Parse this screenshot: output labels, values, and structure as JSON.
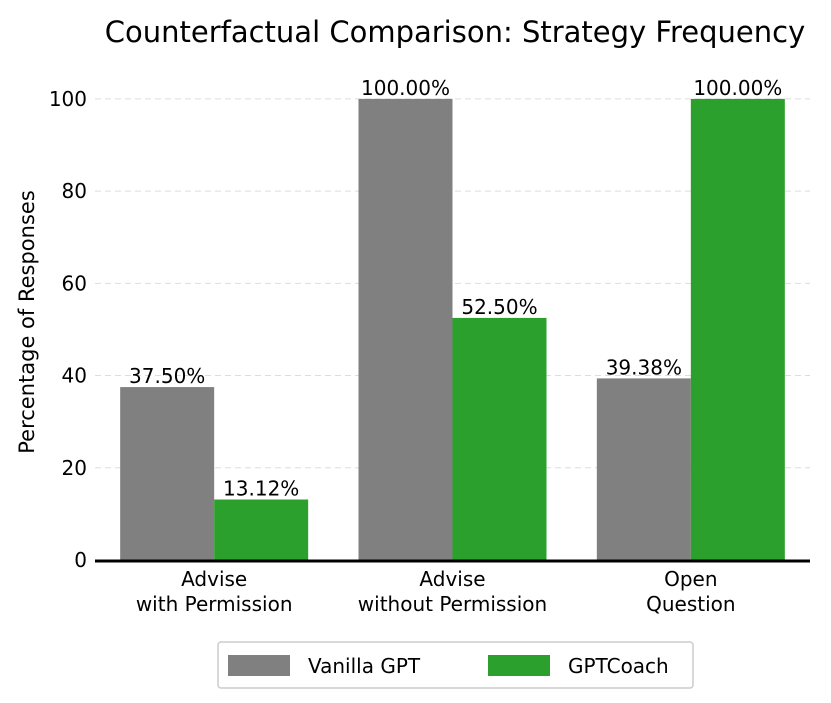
{
  "chart_data": {
    "type": "bar",
    "title": "Counterfactual Comparison: Strategy Frequency",
    "xlabel": "",
    "ylabel": "Percentage of Responses",
    "ylim": [
      0,
      108
    ],
    "yticks": [
      0,
      20,
      40,
      60,
      80,
      100
    ],
    "grid": "horizontal dashed",
    "legend_position": "bottom-center",
    "categories": [
      [
        "Advise",
        "with Permission"
      ],
      [
        "Advise",
        "without Permission"
      ],
      [
        "Open",
        "Question"
      ]
    ],
    "series": [
      {
        "name": "Vanilla GPT",
        "color": "#808080",
        "values": [
          37.5,
          100.0,
          39.38
        ],
        "labels": [
          "37.50%",
          "100.00%",
          "39.38%"
        ]
      },
      {
        "name": "GPTCoach",
        "color": "#2ca02c",
        "values": [
          13.12,
          52.5,
          100.0
        ],
        "labels": [
          "13.12%",
          "52.50%",
          "100.00%"
        ]
      }
    ]
  }
}
